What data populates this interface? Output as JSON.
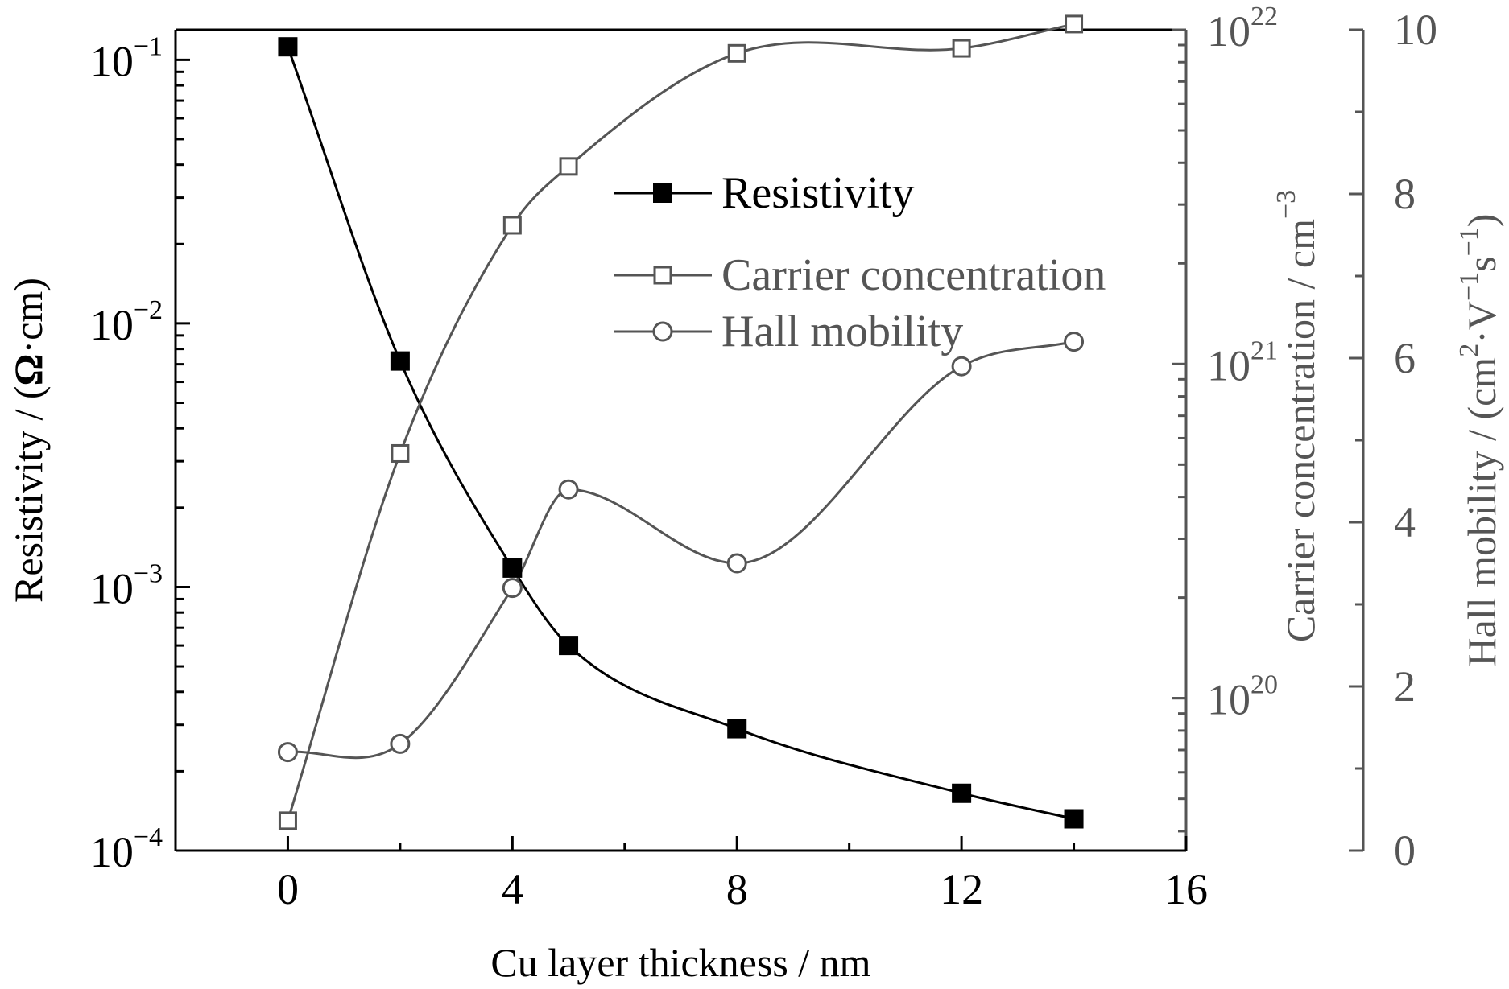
{
  "chart_data": {
    "type": "line",
    "xlabel": "Cu layer thickness / nm",
    "xlim": [
      -2,
      16
    ],
    "xticks": [
      0,
      4,
      8,
      12,
      16
    ],
    "y_left": {
      "label_main": "Resistivity / (",
      "label_omega": "Ω",
      "label_tail": "·cm)",
      "scale": "log",
      "lim": [
        0.0001,
        0.13
      ],
      "ticks": [
        {
          "base": "10",
          "exp": "−1",
          "value": 0.1
        },
        {
          "base": "10",
          "exp": "−2",
          "value": 0.01
        },
        {
          "base": "10",
          "exp": "−3",
          "value": 0.001
        },
        {
          "base": "10",
          "exp": "−4",
          "value": 0.0001
        }
      ]
    },
    "y_right1": {
      "label_main": "Carrier concentration / cm",
      "label_exp": "−3",
      "scale": "log",
      "lim": [
        3.5e+19,
        1e+22
      ],
      "ticks": [
        {
          "base": "10",
          "exp": "22",
          "value": 1e+22
        },
        {
          "base": "10",
          "exp": "21",
          "value": 1e+21
        },
        {
          "base": "10",
          "exp": "20",
          "value": 1e+20
        }
      ]
    },
    "y_right2": {
      "label_pre": "Hall mobility / (cm",
      "label_sup1": "2",
      "label_mid1": "·V",
      "label_sup2": "−1",
      "label_mid2": "s",
      "label_sup3": "−1",
      "label_post": ")",
      "scale": "linear",
      "lim": [
        0,
        10
      ],
      "ticks": [
        0,
        2,
        4,
        6,
        8,
        10
      ]
    },
    "series": [
      {
        "name": "Resistivity",
        "axis": "left",
        "marker": "filled-square",
        "color": "#000000",
        "x": [
          0,
          2,
          4,
          5,
          8,
          12,
          14
        ],
        "y": [
          0.112,
          0.0072,
          0.00118,
          0.0006,
          0.00029,
          0.000165,
          0.000132
        ]
      },
      {
        "name": "Carrier concentration",
        "axis": "right1",
        "marker": "open-square",
        "color": "#555555",
        "x": [
          0,
          2,
          4,
          5,
          8,
          12,
          14
        ],
        "y": [
          4.3e+19,
          5.4e+20,
          2.6e+21,
          3.9e+21,
          8.5e+21,
          8.8e+21,
          1.04e+22
        ]
      },
      {
        "name": "Hall mobility",
        "axis": "right2",
        "marker": "open-circle",
        "color": "#555555",
        "x": [
          0,
          2,
          4,
          5,
          8,
          12,
          14
        ],
        "y": [
          1.2,
          1.3,
          3.2,
          4.4,
          3.5,
          5.9,
          6.2
        ]
      }
    ],
    "legend_position": "upper-center"
  }
}
